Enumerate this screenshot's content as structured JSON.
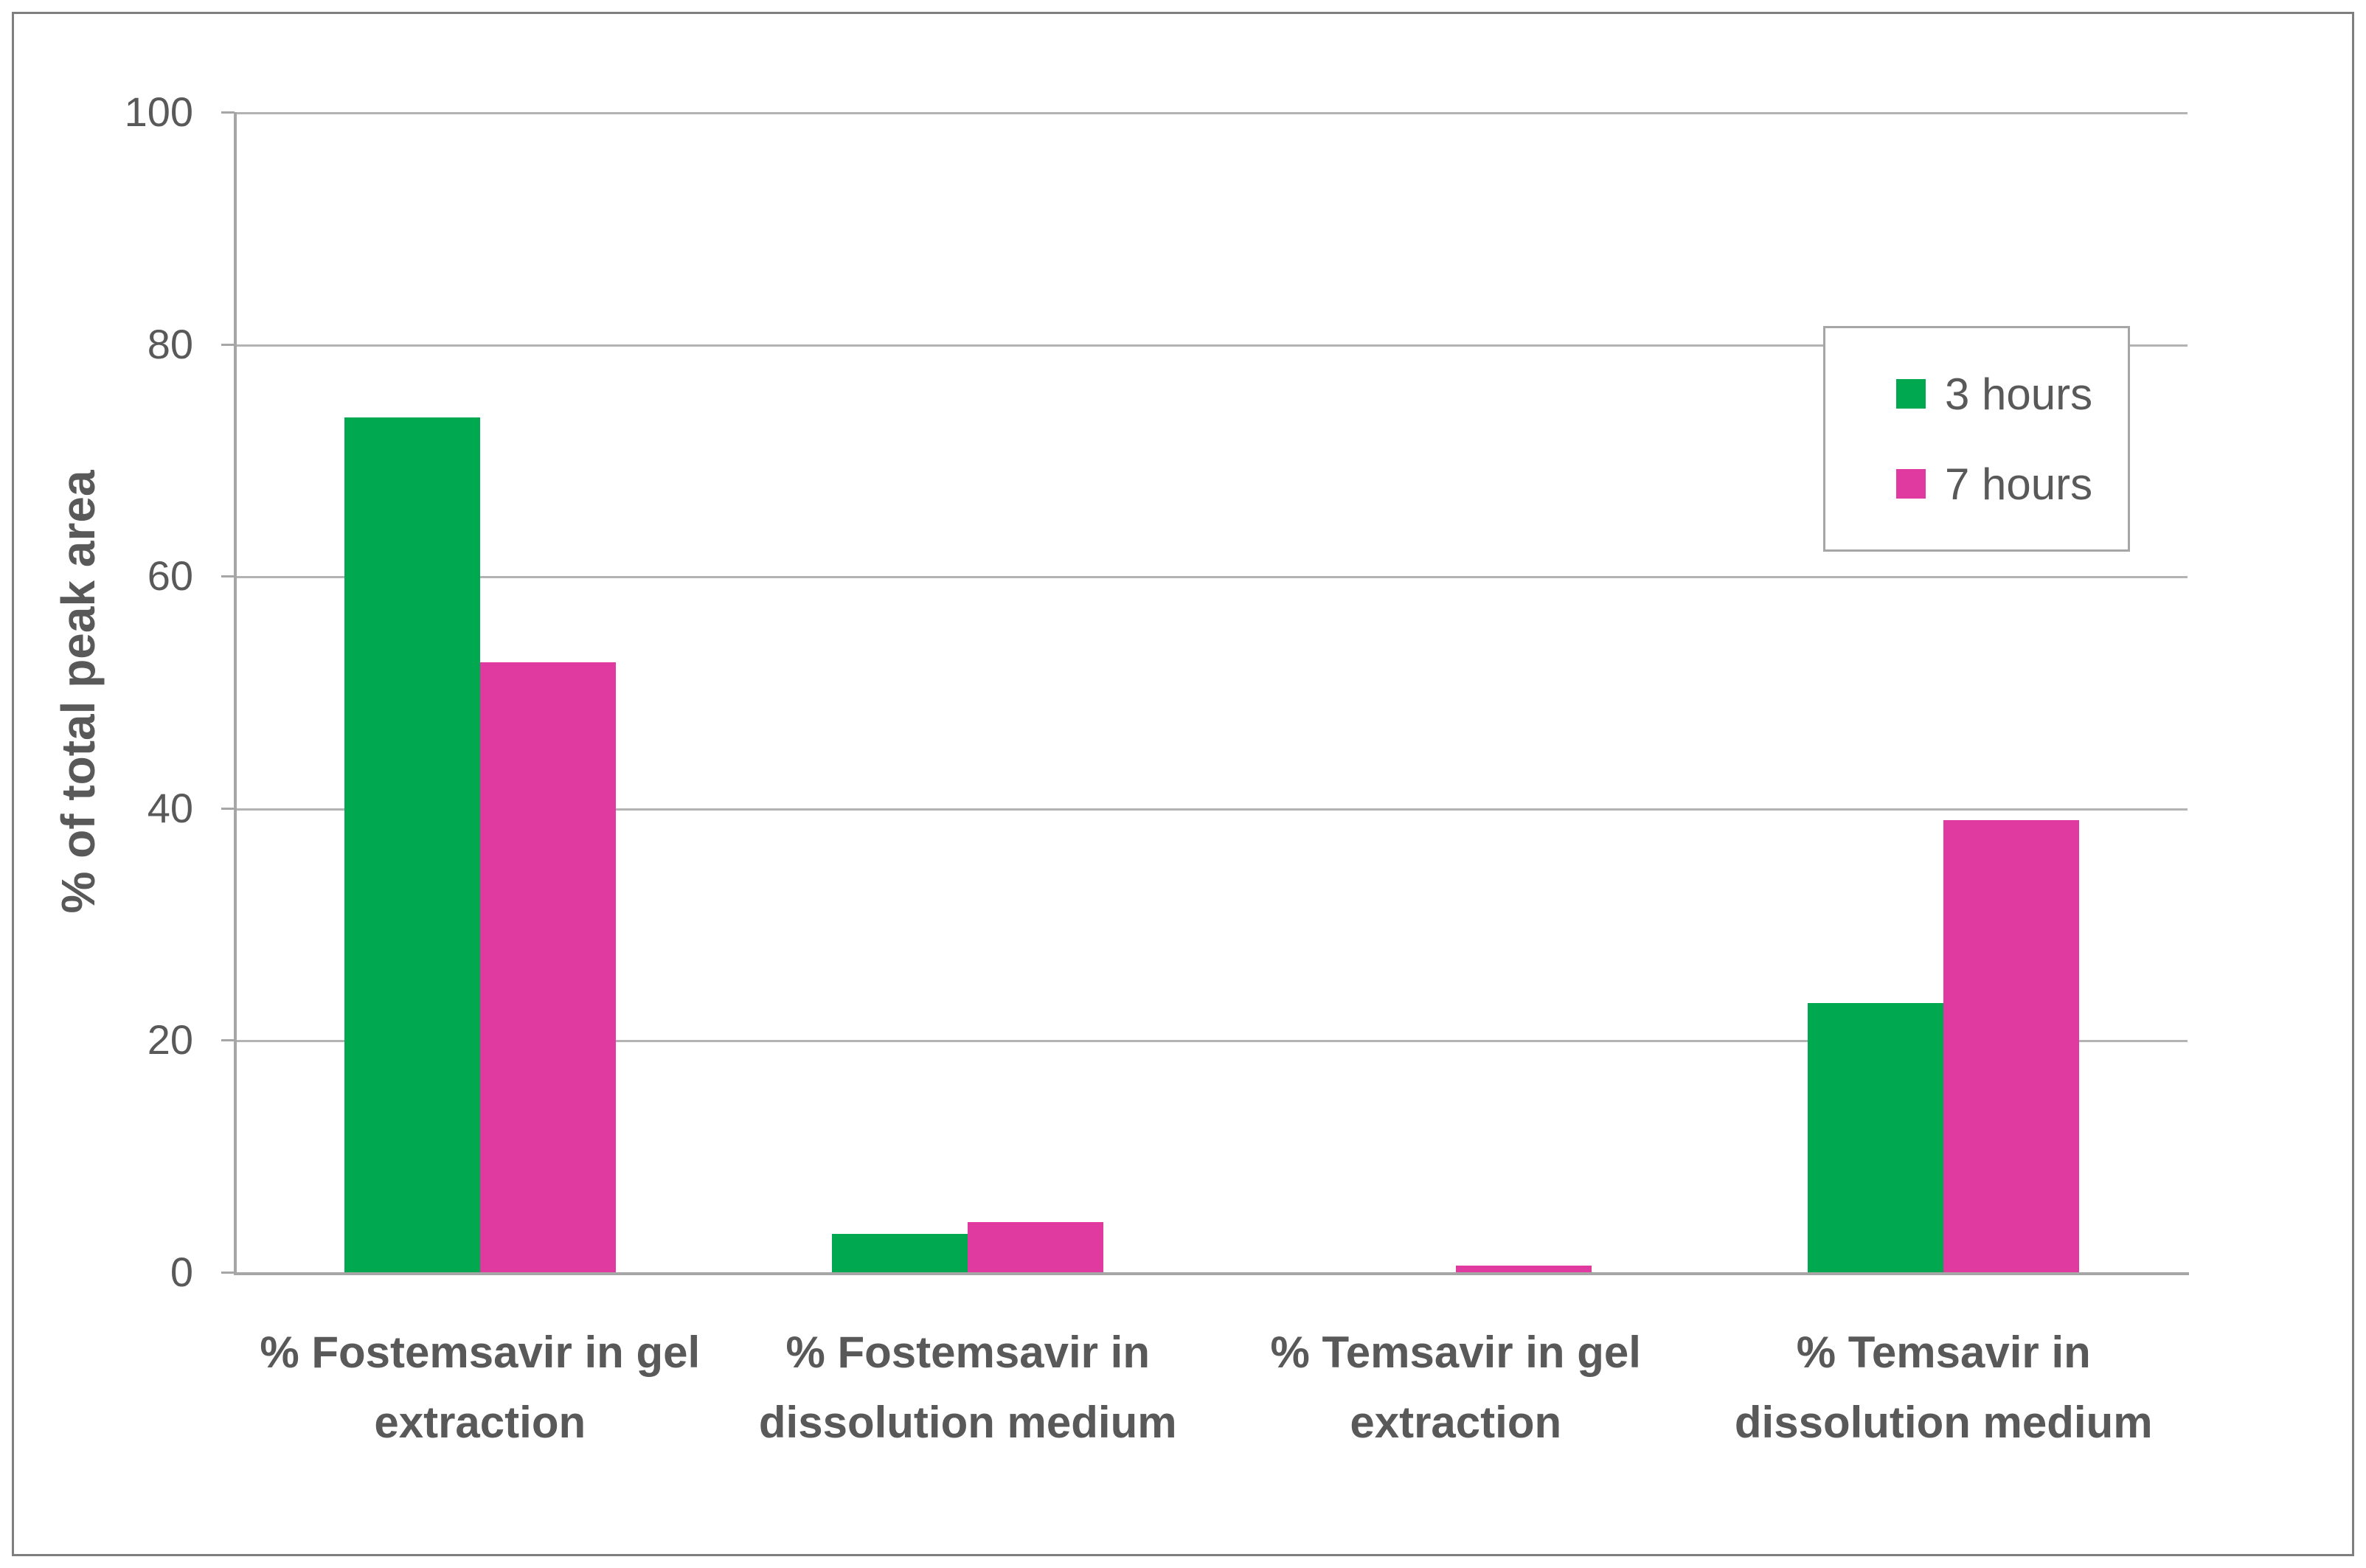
{
  "chart_data": {
    "type": "bar",
    "title": "",
    "xlabel": "",
    "ylabel": "% of total peak area",
    "ylim": [
      0,
      100
    ],
    "yticks": [
      0,
      20,
      40,
      60,
      80,
      100
    ],
    "grid": true,
    "legend_position": "upper right",
    "categories": [
      "% Fostemsavir in gel\nextraction",
      "% Fostemsavir in\ndissolution medium",
      "% Temsavir in gel\nextraction",
      "% Temsavir in\ndissolution medium"
    ],
    "series": [
      {
        "name": "3 hours",
        "color": "#00A94F",
        "values": [
          73.7,
          3.3,
          0,
          23.2
        ]
      },
      {
        "name": "7 hours",
        "color": "#E0399F",
        "values": [
          52.6,
          4.3,
          0.6,
          39.0
        ]
      }
    ]
  },
  "colors": {
    "text": "#595959",
    "gridline": "#b3b3b3",
    "axis": "#a6a6a6",
    "frame_border": "#7f7f7f",
    "background": "#ffffff"
  }
}
